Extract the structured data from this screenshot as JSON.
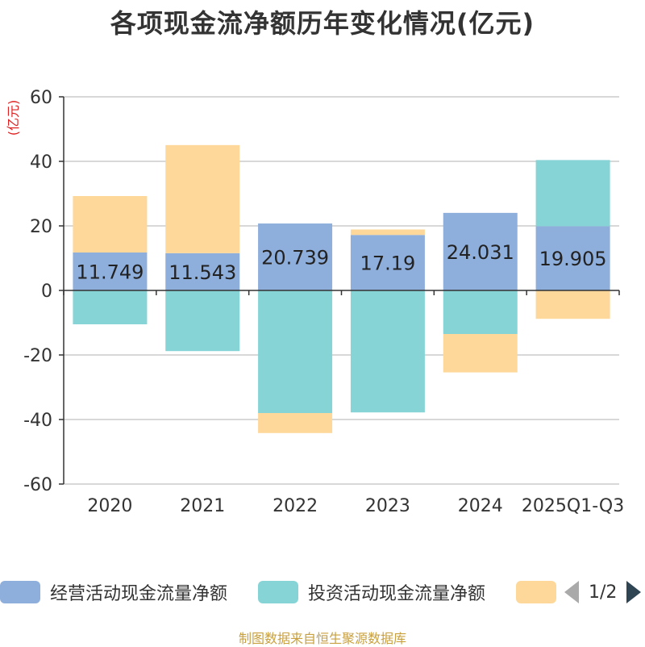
{
  "title": "各项现金流净额历年变化情况(亿元)",
  "source": "制图数据来自恒生聚源数据库",
  "pager": {
    "text": "1/2"
  },
  "colors": {
    "operating": "#8eaedc",
    "investing": "#86d4d6",
    "financing": "#fdd89a"
  },
  "chart_data": {
    "type": "bar",
    "stacked": true,
    "title": "各项现金流净额历年变化情况(亿元)",
    "ylabel": "(亿元)",
    "ylim": [
      -60,
      60
    ],
    "yticks": [
      60,
      40,
      20,
      0,
      -20,
      -40,
      -60
    ],
    "categories": [
      "2020",
      "2021",
      "2022",
      "2023",
      "2024",
      "2025Q1-Q3"
    ],
    "series": [
      {
        "name": "经营活动现金流量净额",
        "values": [
          11.749,
          11.543,
          20.739,
          17.19,
          24.031,
          19.905
        ],
        "show_labels": true
      },
      {
        "name": "投资活动现金流量净额",
        "values": [
          -10.5,
          -18.8,
          -38.0,
          -37.8,
          -13.5,
          20.5
        ]
      },
      {
        "name": "",
        "values": [
          17.5,
          33.5,
          -6.2,
          1.7,
          -11.9,
          -8.8
        ]
      }
    ],
    "legend": [
      "经营活动现金流量净额",
      "投资活动现金流量净额",
      ""
    ]
  }
}
